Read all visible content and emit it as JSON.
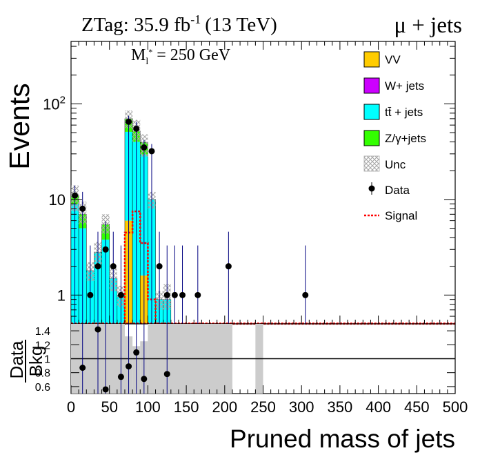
{
  "header": {
    "lumi_label": "ZTag: 35.9 fb",
    "lumi_exp": "-1",
    "lumi_energy": "(13 TeV)",
    "channel": "μ + jets"
  },
  "annotation": {
    "mass_sym": "M",
    "mass_sub": "l",
    "mass_sup": "*",
    "mass_value": "= 250 GeV"
  },
  "colors": {
    "VV": "#ffcc00",
    "Wjets": "#cc00ff",
    "ttbar": "#00ffff",
    "Zjets": "#33ff00",
    "signal": "#ff0000",
    "unc_band": "#cccccc",
    "axis": "#000000"
  },
  "chart_data": [
    {
      "type": "bar",
      "title": "",
      "xlabel": "Pruned mass of jets",
      "ylabel": "Events",
      "xlim": [
        0,
        500
      ],
      "ylim": [
        0.5,
        450
      ],
      "log_y": true,
      "x_ticks": [
        "0",
        "50",
        "100",
        "150",
        "200",
        "250",
        "300",
        "350",
        "400",
        "450",
        "500"
      ],
      "y_ticks": [
        "1",
        "10",
        "10^2"
      ],
      "legend_position": "top-right",
      "bin_width": 10,
      "bin_edges_start": [
        0,
        10,
        20,
        30,
        40,
        50,
        60,
        70,
        80,
        90,
        100,
        110,
        120,
        130,
        140,
        150,
        160,
        170,
        180,
        190,
        200,
        210,
        220,
        230,
        240,
        250,
        260,
        270,
        280,
        290,
        300,
        310,
        320,
        330,
        340,
        350,
        360,
        370,
        380,
        390,
        400,
        410,
        420,
        430,
        440,
        450,
        460,
        470,
        480,
        490
      ],
      "series": [
        {
          "name": "VV",
          "legend": "VV",
          "kind": "stack",
          "values": [
            0,
            0,
            0,
            0,
            0,
            0,
            0,
            6,
            0,
            1.6,
            0,
            0,
            0,
            0,
            0,
            0,
            0,
            0,
            0,
            0,
            0,
            0,
            0,
            0,
            0,
            0,
            0,
            0,
            0,
            0,
            0,
            0,
            0,
            0,
            0,
            0,
            0,
            0,
            0,
            0,
            0,
            0,
            0,
            0,
            0,
            0,
            0,
            0,
            0,
            0
          ]
        },
        {
          "name": "W+ jets",
          "legend": "W+ jets",
          "kind": "stack",
          "values": [
            0,
            0,
            0,
            0,
            0,
            0,
            0,
            0,
            0,
            0,
            0,
            0,
            0,
            0,
            0,
            0,
            0,
            0,
            0,
            0,
            0,
            0,
            0,
            0,
            0,
            0,
            0,
            0,
            0,
            0,
            0,
            0,
            0,
            0,
            0,
            0,
            0,
            0,
            0,
            0,
            0,
            0,
            0,
            0,
            0,
            0,
            0,
            0,
            0,
            0
          ]
        },
        {
          "name": "tt + jets",
          "legend": "tt̄ + jets",
          "kind": "stack",
          "values": [
            9,
            5,
            1.8,
            2.8,
            3.8,
            1.5,
            1,
            45,
            40,
            28,
            10,
            0.9,
            0.9,
            0,
            0,
            0,
            0,
            0,
            0,
            0,
            0,
            0,
            0,
            0,
            0,
            0,
            0,
            0,
            0,
            0,
            0,
            0,
            0,
            0,
            0,
            0,
            0,
            0,
            0,
            0,
            0,
            0,
            0,
            0,
            0,
            0,
            0,
            0,
            0,
            0
          ]
        },
        {
          "name": "Z/gamma+jets",
          "legend": "Z/γ+jets",
          "kind": "stack",
          "values": [
            2,
            2,
            0,
            0,
            1.7,
            0,
            0,
            19,
            12,
            10,
            0,
            0,
            0,
            0,
            0,
            0,
            0,
            0,
            0,
            0,
            0,
            0,
            0,
            0,
            0,
            0,
            0,
            0,
            0,
            0,
            0,
            0,
            0,
            0,
            0,
            0,
            0,
            0,
            0,
            0,
            0,
            0,
            0,
            0,
            0,
            0,
            0,
            0,
            0,
            0
          ]
        },
        {
          "name": "Signal",
          "legend": "Signal",
          "kind": "line",
          "values": [
            0,
            0,
            0,
            0,
            0,
            0,
            0,
            4.5,
            7.5,
            3.5,
            0.9,
            0,
            0,
            0,
            0,
            0,
            0,
            0,
            0,
            0,
            0,
            0,
            0,
            0,
            0,
            0,
            0,
            0,
            0,
            0,
            0,
            0,
            0,
            0,
            0,
            0,
            0,
            0,
            0,
            0,
            0,
            0,
            0,
            0,
            0,
            0,
            0,
            0,
            0,
            0
          ]
        }
      ],
      "unc": {
        "name": "Unc",
        "legend": "Unc",
        "low": [
          7.5,
          5.5,
          1.4,
          2.0,
          4.4,
          1.1,
          0.75,
          55,
          40,
          28,
          8,
          0.7,
          0.7,
          0,
          0,
          0,
          0,
          0,
          0,
          0,
          0,
          0,
          0,
          0,
          0,
          0,
          0,
          0,
          0,
          0,
          0,
          0,
          0,
          0,
          0,
          0,
          0,
          0,
          0,
          0,
          0,
          0,
          0,
          0,
          0,
          0,
          0,
          0,
          0,
          0
        ],
        "high": [
          14,
          9.5,
          2.2,
          3.6,
          7.0,
          1.9,
          1.25,
          85,
          68,
          48,
          12,
          1.1,
          1.3,
          0,
          0,
          0,
          0,
          0,
          0,
          0,
          0,
          0,
          0,
          0,
          0,
          0,
          0,
          0,
          0,
          0,
          0,
          0,
          0,
          0,
          0,
          0,
          0,
          0,
          0,
          0,
          0,
          0,
          0,
          0,
          0,
          0,
          0,
          0,
          0,
          0
        ]
      },
      "data_points": {
        "name": "Data",
        "legend": "Data",
        "x": [
          5,
          15,
          25,
          35,
          45,
          55,
          65,
          75,
          85,
          95,
          105,
          115,
          125,
          135,
          145,
          165,
          205,
          305
        ],
        "y": [
          11,
          8,
          1,
          2,
          3,
          2,
          1,
          65,
          55,
          35,
          32,
          2,
          1,
          1,
          1,
          1,
          2,
          1
        ],
        "err_high": [
          14,
          12,
          3.3,
          4.6,
          5.9,
          4.6,
          3.3,
          75,
          65,
          42,
          38,
          4.6,
          3.3,
          3.3,
          3.3,
          3.3,
          4.6,
          3.3
        ]
      }
    },
    {
      "type": "scatter",
      "title": "",
      "xlabel": "Pruned mass of jets",
      "ylabel": "Data/Bkg",
      "ylabel_num": "Data",
      "ylabel_den": "Bkg",
      "xlim": [
        0,
        500
      ],
      "ylim": [
        0.5,
        1.5
      ],
      "y_ticks": [
        "0.6",
        "0.8",
        "1",
        "1.2",
        "1.4"
      ],
      "reference_line": 1,
      "x": [
        15,
        35,
        45,
        65,
        75,
        85,
        95,
        125
      ],
      "y": [
        0.87,
        1.42,
        0.56,
        0.74,
        0.89,
        1.09,
        0.71,
        0.78
      ],
      "band_bins": [
        {
          "x0": 0,
          "x1": 70,
          "low": 0.5,
          "high": 1.5
        },
        {
          "x0": 70,
          "x1": 80,
          "low": 0.5,
          "high": 1.32
        },
        {
          "x0": 80,
          "x1": 90,
          "low": 0.5,
          "high": 1.18
        },
        {
          "x0": 90,
          "x1": 100,
          "low": 0.5,
          "high": 1.25
        },
        {
          "x0": 100,
          "x1": 210,
          "low": 0.5,
          "high": 1.5
        },
        {
          "x0": 240,
          "x1": 250,
          "low": 0.5,
          "high": 1.5
        }
      ]
    }
  ]
}
